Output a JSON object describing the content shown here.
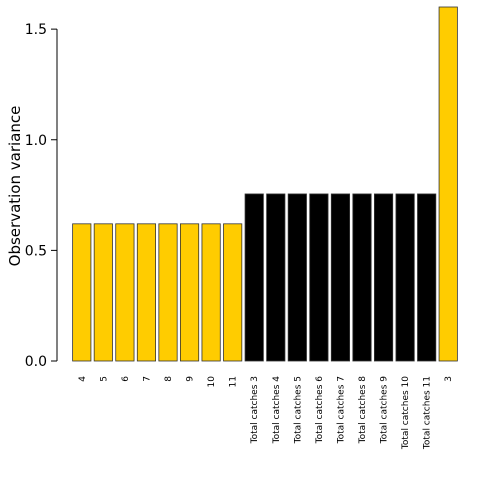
{
  "chart_data": {
    "type": "bar",
    "title": "",
    "xlabel": "",
    "ylabel": "Observation variance",
    "ylim": [
      0,
      1.6
    ],
    "yticks": [
      0.0,
      0.5,
      1.0,
      1.5
    ],
    "ytick_labels": [
      "0.0",
      "0.5",
      "1.0",
      "1.5"
    ],
    "grid": false,
    "legend": "none",
    "categories": [
      "4",
      "5",
      "6",
      "7",
      "8",
      "9",
      "10",
      "11",
      "Total catches 3",
      "Total catches 4",
      "Total catches 5",
      "Total catches 6",
      "Total catches 7",
      "Total catches 8",
      "Total catches 9",
      "Total catches 10",
      "Total catches 11",
      "3"
    ],
    "values": [
      0.62,
      0.62,
      0.62,
      0.62,
      0.62,
      0.62,
      0.62,
      0.62,
      0.755,
      0.755,
      0.755,
      0.755,
      0.755,
      0.755,
      0.755,
      0.755,
      0.755,
      1.6
    ],
    "bar_colors": [
      "#FFCC00",
      "#FFCC00",
      "#FFCC00",
      "#FFCC00",
      "#FFCC00",
      "#FFCC00",
      "#FFCC00",
      "#FFCC00",
      "#000000",
      "#000000",
      "#000000",
      "#000000",
      "#000000",
      "#000000",
      "#000000",
      "#000000",
      "#000000",
      "#FFCC00"
    ],
    "edge_color": "#333333"
  }
}
